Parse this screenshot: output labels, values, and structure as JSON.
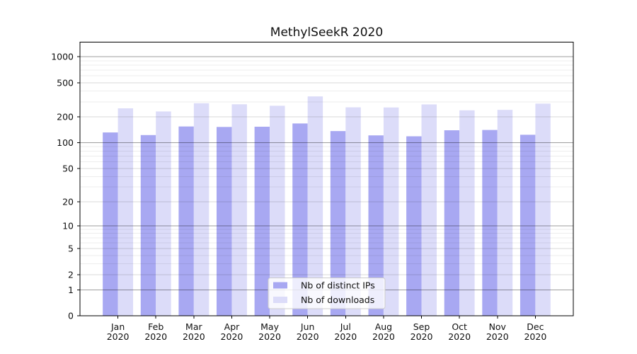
{
  "chart_data": {
    "type": "bar",
    "title": "MethylSeekR 2020",
    "year_label": "2020",
    "categories": [
      "Jan",
      "Feb",
      "Mar",
      "Apr",
      "May",
      "Jun",
      "Jul",
      "Aug",
      "Sep",
      "Oct",
      "Nov",
      "Dec"
    ],
    "series": [
      {
        "name": "Nb of distinct IPs",
        "color": "#a8a8f2",
        "values": [
          132,
          123,
          155,
          153,
          154,
          168,
          137,
          122,
          119,
          140,
          141,
          124
        ]
      },
      {
        "name": "Nb of downloads",
        "color": "#dcdcf9",
        "values": [
          252,
          232,
          289,
          281,
          270,
          347,
          259,
          258,
          280,
          239,
          242,
          286
        ]
      }
    ],
    "yscale": "log1p",
    "yticks": [
      0,
      1,
      2,
      5,
      10,
      20,
      50,
      100,
      200,
      500,
      1000
    ],
    "ylim": [
      0,
      1480
    ],
    "grid": true,
    "legend_position": "lower-center",
    "background_color": "#ffffff",
    "spine_color": "#000000"
  }
}
